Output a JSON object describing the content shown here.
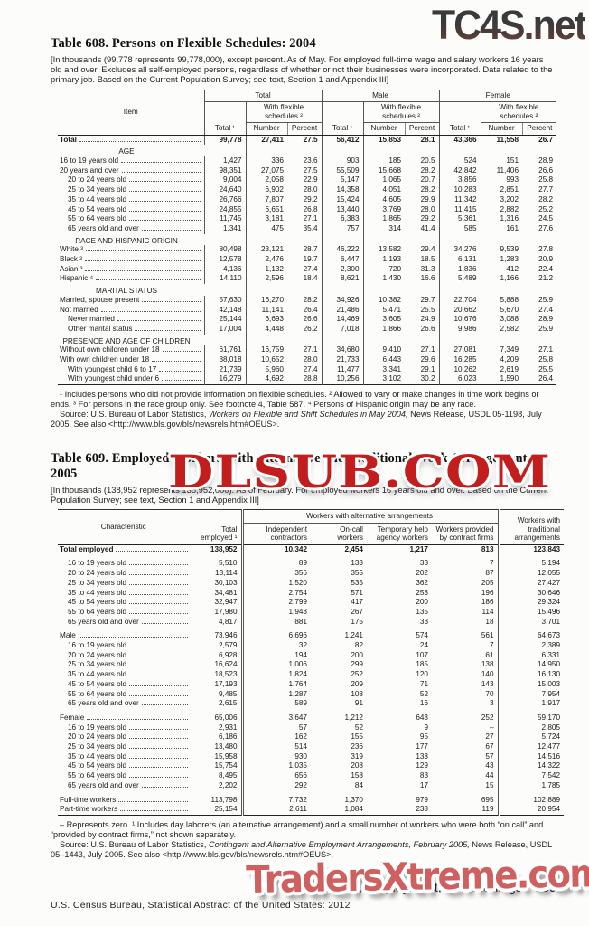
{
  "watermarks": {
    "top": "TC4S.net",
    "middle": "DLSUB.COM",
    "bottom": "TradersXtreme.com",
    "top_color_dark": "#3a3a3a",
    "top_color_maroon": "#83493f",
    "middle_color": "#c31e1e",
    "bottom_color": "#cf6060"
  },
  "table608": {
    "title": "Table 608. Persons on Flexible Schedules: 2004",
    "headnote": "[In thousands (99,778 represents 99,778,000), except percent. As of May. For employed full-time wage and salary workers 16 years old and over. Excludes all self-employed persons, regardless of whether or not their businesses were incorporated. Data related to the primary job. Based on the Current Population Survey;  see text, Section 1 and Appendix III]",
    "header": {
      "item": "Item",
      "groups": [
        "Total",
        "Male",
        "Female"
      ],
      "wfs": "With flexible schedules ²",
      "total": "Total ¹",
      "number": "Number",
      "percent": "Percent"
    },
    "rows": [
      {
        "label": "Total",
        "i": 0,
        "bold": true,
        "values": [
          "99,778",
          "27,411",
          "27.5",
          "56,412",
          "15,853",
          "28.1",
          "43,366",
          "11,558",
          "26.7"
        ]
      },
      {
        "section": "AGE"
      },
      {
        "label": "16 to 19 years old",
        "i": 0,
        "values": [
          "1,427",
          "336",
          "23.6",
          "903",
          "185",
          "20.5",
          "524",
          "151",
          "28.9"
        ]
      },
      {
        "label": "20 years and over",
        "i": 0,
        "values": [
          "98,351",
          "27,075",
          "27.5",
          "55,509",
          "15,668",
          "28.2",
          "42,842",
          "11,406",
          "26.6"
        ]
      },
      {
        "label": "20 to 24 years old",
        "i": 1,
        "values": [
          "9,004",
          "2,058",
          "22.9",
          "5,147",
          "1,065",
          "20.7",
          "3,856",
          "993",
          "25.8"
        ]
      },
      {
        "label": "25 to 34 years old",
        "i": 1,
        "values": [
          "24,640",
          "6,902",
          "28.0",
          "14,358",
          "4,051",
          "28.2",
          "10,283",
          "2,851",
          "27.7"
        ]
      },
      {
        "label": "35 to 44 years old",
        "i": 1,
        "values": [
          "26,766",
          "7,807",
          "29.2",
          "15,424",
          "4,605",
          "29.9",
          "11,342",
          "3,202",
          "28.2"
        ]
      },
      {
        "label": "45 to 54 years old",
        "i": 1,
        "values": [
          "24,855",
          "6,651",
          "26.8",
          "13,440",
          "3,769",
          "28.0",
          "11,415",
          "2,882",
          "25.2"
        ]
      },
      {
        "label": "55 to 64 years old",
        "i": 1,
        "values": [
          "11,745",
          "3,181",
          "27.1",
          "6,383",
          "1,865",
          "29.2",
          "5,361",
          "1,316",
          "24.5"
        ]
      },
      {
        "label": "65 years old and over",
        "i": 1,
        "values": [
          "1,341",
          "475",
          "35.4",
          "757",
          "314",
          "41.4",
          "585",
          "161",
          "27.6"
        ]
      },
      {
        "section": "RACE AND HISPANIC ORIGIN"
      },
      {
        "label": "White ³",
        "i": 0,
        "values": [
          "80,498",
          "23,121",
          "28.7",
          "46,222",
          "13,582",
          "29.4",
          "34,276",
          "9,539",
          "27.8"
        ]
      },
      {
        "label": "Black ³",
        "i": 0,
        "values": [
          "12,578",
          "2,476",
          "19.7",
          "6,447",
          "1,193",
          "18.5",
          "6,131",
          "1,283",
          "20.9"
        ]
      },
      {
        "label": "Asian ³",
        "i": 0,
        "values": [
          "4,136",
          "1,132",
          "27.4",
          "2,300",
          "720",
          "31.3",
          "1,836",
          "412",
          "22.4"
        ]
      },
      {
        "label": "Hispanic ⁴",
        "i": 0,
        "values": [
          "14,110",
          "2,596",
          "18.4",
          "8,621",
          "1,430",
          "16.6",
          "5,489",
          "1,166",
          "21.2"
        ]
      },
      {
        "section": "MARITAL STATUS"
      },
      {
        "label": "Married, spouse present",
        "i": 0,
        "values": [
          "57,630",
          "16,270",
          "28.2",
          "34,926",
          "10,382",
          "29.7",
          "22,704",
          "5,888",
          "25.9"
        ]
      },
      {
        "label": "Not married",
        "i": 0,
        "values": [
          "42,148",
          "11,141",
          "26.4",
          "21,486",
          "5,471",
          "25.5",
          "20,662",
          "5,670",
          "27.4"
        ]
      },
      {
        "label": "Never married",
        "i": 1,
        "values": [
          "25,144",
          "6,693",
          "26.6",
          "14,469",
          "3,605",
          "24.9",
          "10,676",
          "3,088",
          "28.9"
        ]
      },
      {
        "label": "Other marital status",
        "i": 1,
        "values": [
          "17,004",
          "4,448",
          "26.2",
          "7,018",
          "1,866",
          "26.6",
          "9,986",
          "2,582",
          "25.9"
        ]
      },
      {
        "section": "PRESENCE AND AGE OF CHILDREN"
      },
      {
        "label": "Without own children under 18",
        "i": 0,
        "values": [
          "61,761",
          "16,759",
          "27.1",
          "34,680",
          "9,410",
          "27.1",
          "27,081",
          "7,349",
          "27.1"
        ]
      },
      {
        "label": "With own children under 18",
        "i": 0,
        "values": [
          "38,018",
          "10,652",
          "28.0",
          "21,733",
          "6,443",
          "29.6",
          "16,285",
          "4,209",
          "25.8"
        ]
      },
      {
        "label": "With youngest child 6 to 17",
        "i": 1,
        "values": [
          "21,739",
          "5,960",
          "27.4",
          "11,477",
          "3,341",
          "29.1",
          "10,262",
          "2,619",
          "25.5"
        ]
      },
      {
        "label": "With youngest child under 6",
        "i": 1,
        "values": [
          "16,279",
          "4,692",
          "28.8",
          "10,256",
          "3,102",
          "30.2",
          "6,023",
          "1,590",
          "26.4"
        ]
      }
    ],
    "footnote1": "¹ Includes persons who did not provide information on flexible schedules. ² Allowed to vary or make changes in time work begins or ends. ³ For persons in the race group only. See footnote 4, Table 587. ⁴ Persons of Hispanic origin may be any race.",
    "source_prefix": "Source: U.S. Bureau of Labor Statistics, ",
    "source_italic": "Workers on Flexible and Shift Schedules in May 2004,",
    "source_suffix": " News Release, USDL 05-1198, July 2005. See also <http://www.bls.gov/bls/newsrels.htm#OEUS>."
  },
  "table609": {
    "title": "Table 609. Employed Workers With Alternative and Traditional Work Arrangements: 2005",
    "headnote": "[In thousands (138,952 represents 138,952,000). As of February. For employed workers 16 years old and over. Based on the Current Population Survey; see text, Section 1 and Appendix III]",
    "header": {
      "characteristic": "Characteristic",
      "total_employed": "Total employed ¹",
      "span": "Workers with alternative arrangements",
      "cols": [
        "Independent contractors",
        "On-call workers",
        "Temporary help agency workers",
        "Workers provided by contract firms"
      ],
      "traditional": "Workers with traditional arrangements"
    },
    "rows": [
      {
        "label": "Total employed",
        "i": 0,
        "bold": true,
        "values": [
          "138,952",
          "10,342",
          "2,454",
          "1,217",
          "813",
          "123,843"
        ]
      },
      {
        "label": "16 to 19 years old",
        "i": 1,
        "gap": true,
        "values": [
          "5,510",
          "89",
          "133",
          "33",
          "7",
          "5,194"
        ]
      },
      {
        "label": "20 to 24 years old",
        "i": 1,
        "values": [
          "13,114",
          "356",
          "355",
          "202",
          "87",
          "12,055"
        ]
      },
      {
        "label": "25 to 34 years old",
        "i": 1,
        "values": [
          "30,103",
          "1,520",
          "535",
          "362",
          "205",
          "27,427"
        ]
      },
      {
        "label": "35 to 44 years old",
        "i": 1,
        "values": [
          "34,481",
          "2,754",
          "571",
          "253",
          "196",
          "30,646"
        ]
      },
      {
        "label": "45 to 54 years old",
        "i": 1,
        "values": [
          "32,947",
          "2,799",
          "417",
          "200",
          "186",
          "29,324"
        ]
      },
      {
        "label": "55 to 64 years old",
        "i": 1,
        "values": [
          "17,980",
          "1,943",
          "267",
          "135",
          "114",
          "15,496"
        ]
      },
      {
        "label": "65 years old and over",
        "i": 1,
        "values": [
          "4,817",
          "881",
          "175",
          "33",
          "18",
          "3,701"
        ]
      },
      {
        "label": "Male",
        "i": 0,
        "gap": true,
        "values": [
          "73,946",
          "6,696",
          "1,241",
          "574",
          "561",
          "64,673"
        ]
      },
      {
        "label": "16 to 19 years old",
        "i": 1,
        "values": [
          "2,579",
          "32",
          "82",
          "24",
          "7",
          "2,389"
        ]
      },
      {
        "label": "20 to 24 years old",
        "i": 1,
        "values": [
          "6,928",
          "194",
          "200",
          "107",
          "61",
          "6,331"
        ]
      },
      {
        "label": "25 to 34 years old",
        "i": 1,
        "values": [
          "16,624",
          "1,006",
          "299",
          "185",
          "138",
          "14,950"
        ]
      },
      {
        "label": "35 to 44 years old",
        "i": 1,
        "values": [
          "18,523",
          "1,824",
          "252",
          "120",
          "140",
          "16,130"
        ]
      },
      {
        "label": "45 to 54 years old",
        "i": 1,
        "values": [
          "17,193",
          "1,764",
          "209",
          "71",
          "143",
          "15,003"
        ]
      },
      {
        "label": "55 to 64 years old",
        "i": 1,
        "values": [
          "9,485",
          "1,287",
          "108",
          "52",
          "70",
          "7,954"
        ]
      },
      {
        "label": "65 years old and over",
        "i": 1,
        "values": [
          "2,615",
          "589",
          "91",
          "16",
          "3",
          "1,917"
        ]
      },
      {
        "label": "Female",
        "i": 0,
        "gap": true,
        "values": [
          "65,006",
          "3,647",
          "1,212",
          "643",
          "252",
          "59,170"
        ]
      },
      {
        "label": "16 to 19 years old",
        "i": 1,
        "values": [
          "2,931",
          "57",
          "52",
          "9",
          "–",
          "2,805"
        ]
      },
      {
        "label": "20 to 24 years old",
        "i": 1,
        "values": [
          "6,186",
          "162",
          "155",
          "95",
          "27",
          "5,724"
        ]
      },
      {
        "label": "25 to 34 years old",
        "i": 1,
        "values": [
          "13,480",
          "514",
          "236",
          "177",
          "67",
          "12,477"
        ]
      },
      {
        "label": "35 to 44 years old",
        "i": 1,
        "values": [
          "15,958",
          "930",
          "319",
          "133",
          "57",
          "14,516"
        ]
      },
      {
        "label": "45 to 54 years old",
        "i": 1,
        "values": [
          "15,754",
          "1,035",
          "208",
          "129",
          "43",
          "14,322"
        ]
      },
      {
        "label": "55 to 64 years old",
        "i": 1,
        "values": [
          "8,495",
          "656",
          "158",
          "83",
          "44",
          "7,542"
        ]
      },
      {
        "label": "65 years old and over",
        "i": 1,
        "values": [
          "2,202",
          "292",
          "84",
          "17",
          "15",
          "1,785"
        ]
      },
      {
        "label": "Full-time workers",
        "i": 0,
        "gap": true,
        "values": [
          "113,798",
          "7,732",
          "1,370",
          "979",
          "695",
          "102,889"
        ]
      },
      {
        "label": "Part-time workers",
        "i": 0,
        "values": [
          "25,154",
          "2,611",
          "1,084",
          "238",
          "119",
          "20,954"
        ]
      }
    ],
    "footnote1": "– Represents zero. ¹ Includes day laborers (an alternative arrangement) and a small number of workers who were both “on call” and “provided by contract firms,” not shown separately.",
    "source_prefix": "Source: U.S. Bureau of Labor Statistics, ",
    "source_italic": "Contingent and Alternative Employment Arrangements, February 2005,",
    "source_suffix": " News Release, USDL 05–1443, July 2005. See also <http://www.bls.gov/bls/newsrels.htm#OEUS>."
  },
  "page_footer": {
    "section_title": "Labor Force, Employment, and Earnings",
    "page_number": "389",
    "credit": "U.S. Census Bureau, Statistical Abstract of the United States: 2012"
  }
}
